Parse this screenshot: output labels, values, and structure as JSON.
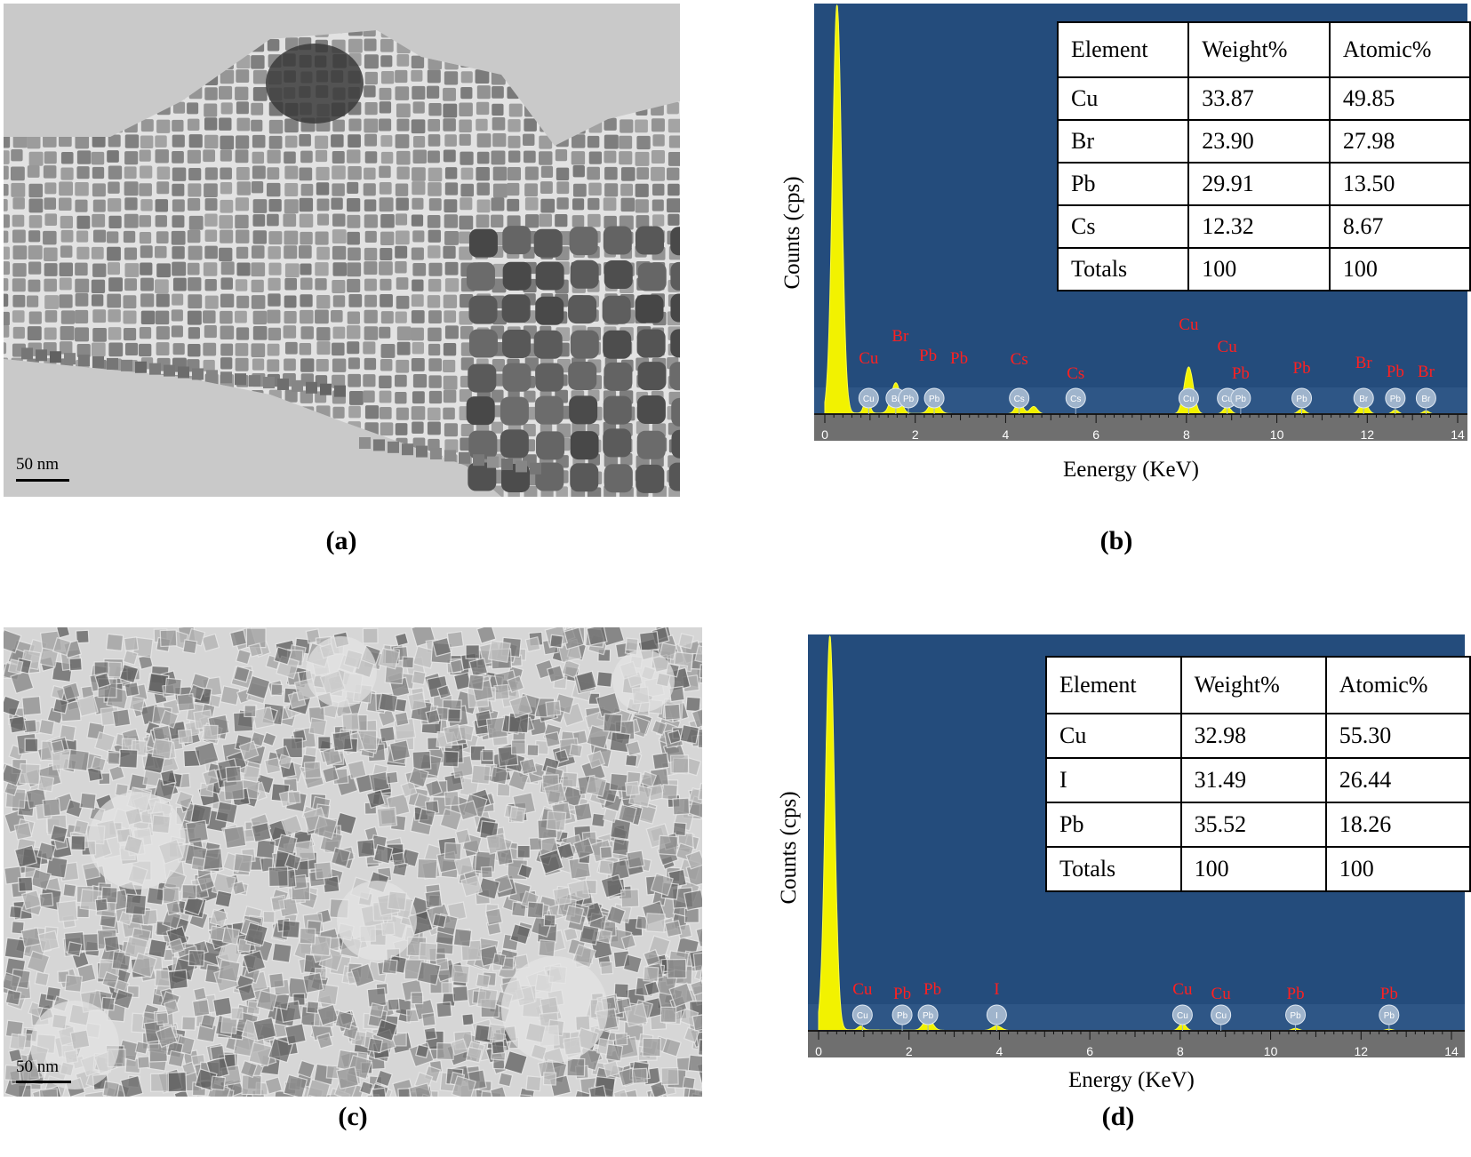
{
  "panel_a": {
    "caption": "(a)",
    "scale_bar": "50 nm"
  },
  "panel_b": {
    "caption": "(b)",
    "table": {
      "headers": [
        "Element",
        "Weight%",
        "Atomic%"
      ],
      "rows": [
        [
          "Cu",
          "33.87",
          "49.85"
        ],
        [
          "Br",
          "23.90",
          "27.98"
        ],
        [
          "Pb",
          "29.91",
          "13.50"
        ],
        [
          "Cs",
          "12.32",
          "8.67"
        ],
        [
          "Totals",
          "100",
          "100"
        ]
      ]
    },
    "chart_data": {
      "type": "area",
      "xlabel": "Eenergy (KeV)",
      "ylabel": "Counts (cps)",
      "xlim": [
        0,
        14
      ],
      "x_ticks": [
        "0",
        "2",
        "4",
        "6",
        "8",
        "10",
        "12",
        "14"
      ],
      "peaks": [
        {
          "x": 0.27,
          "h": 1.0,
          "w": 0.1
        },
        {
          "x": 0.93,
          "h": 0.04,
          "w": 0.06
        },
        {
          "x": 1.57,
          "h": 0.075,
          "w": 0.1
        },
        {
          "x": 2.42,
          "h": 0.035,
          "w": 0.1
        },
        {
          "x": 4.3,
          "h": 0.03,
          "w": 0.08
        },
        {
          "x": 4.62,
          "h": 0.018,
          "w": 0.08
        },
        {
          "x": 8.05,
          "h": 0.115,
          "w": 0.1
        },
        {
          "x": 8.9,
          "h": 0.018,
          "w": 0.08
        },
        {
          "x": 10.55,
          "h": 0.012,
          "w": 0.08
        },
        {
          "x": 11.92,
          "h": 0.03,
          "w": 0.09
        },
        {
          "x": 12.62,
          "h": 0.01,
          "w": 0.07
        },
        {
          "x": 13.3,
          "h": 0.008,
          "w": 0.07
        }
      ],
      "markers": [
        {
          "x": 0.97,
          "element": "Cu",
          "labelled": "Cu"
        },
        {
          "x": 1.57,
          "element": "Br",
          "labelled": "Br"
        },
        {
          "x": 1.85,
          "element": "Pb",
          "labelled": "Pb"
        },
        {
          "x": 2.42,
          "element": "Pb",
          "labelled": "Pb"
        },
        {
          "x": 4.3,
          "element": "Cs",
          "labelled": "Cs"
        },
        {
          "x": 5.55,
          "element": "Cs",
          "labelled": "Cs"
        },
        {
          "x": 8.05,
          "element": "Cu",
          "labelled": "Cu"
        },
        {
          "x": 8.9,
          "element": "Cu",
          "labelled": "Cu"
        },
        {
          "x": 9.2,
          "element": "Pb",
          "labelled": "Pb"
        },
        {
          "x": 10.55,
          "element": "Pb",
          "labelled": "Pb"
        },
        {
          "x": 11.92,
          "element": "Br",
          "labelled": "Br"
        },
        {
          "x": 12.62,
          "element": "Pb",
          "labelled": "Pb"
        },
        {
          "x": 13.3,
          "element": "Br",
          "labelled": "Br"
        }
      ]
    }
  },
  "panel_c": {
    "caption": "(c)",
    "scale_bar": "50 nm"
  },
  "panel_d": {
    "caption": "(d)",
    "table": {
      "headers": [
        "Element",
        "Weight%",
        "Atomic%"
      ],
      "rows": [
        [
          "Cu",
          "32.98",
          "55.30"
        ],
        [
          "I",
          "31.49",
          "26.44"
        ],
        [
          "Pb",
          "35.52",
          "18.26"
        ],
        [
          "Totals",
          "100",
          "100"
        ]
      ]
    },
    "chart_data": {
      "type": "area",
      "xlabel": "Energy (KeV)",
      "ylabel": "Counts (cps)",
      "xlim": [
        0,
        14
      ],
      "x_ticks": [
        "0",
        "2",
        "4",
        "6",
        "8",
        "10",
        "12",
        "14"
      ],
      "peaks": [
        {
          "x": 0.25,
          "h": 1.0,
          "w": 0.1
        },
        {
          "x": 0.93,
          "h": 0.01,
          "w": 0.06
        },
        {
          "x": 2.42,
          "h": 0.03,
          "w": 0.1
        },
        {
          "x": 3.94,
          "h": 0.012,
          "w": 0.1
        },
        {
          "x": 8.05,
          "h": 0.018,
          "w": 0.08
        },
        {
          "x": 10.55,
          "h": 0.006,
          "w": 0.08
        },
        {
          "x": 12.62,
          "h": 0.004,
          "w": 0.08
        }
      ],
      "markers": [
        {
          "x": 0.97,
          "element": "Cu",
          "labelled": "Cu"
        },
        {
          "x": 1.85,
          "element": "Pb",
          "labelled": "Pb"
        },
        {
          "x": 2.42,
          "element": "Pb",
          "labelled": "Pb"
        },
        {
          "x": 3.94,
          "element": "I",
          "labelled": "I"
        },
        {
          "x": 8.05,
          "element": "Cu",
          "labelled": "Cu"
        },
        {
          "x": 8.9,
          "element": "Cu",
          "labelled": "Cu"
        },
        {
          "x": 10.55,
          "element": "Pb",
          "labelled": "Pb"
        },
        {
          "x": 12.62,
          "element": "Pb",
          "labelled": "Pb"
        }
      ]
    }
  },
  "colors": {
    "eds_background": "#244c7c",
    "spectrum_fill": "#f2f200",
    "marker_label": "#ff2020",
    "marker_bubble": "#9fb4cc"
  }
}
